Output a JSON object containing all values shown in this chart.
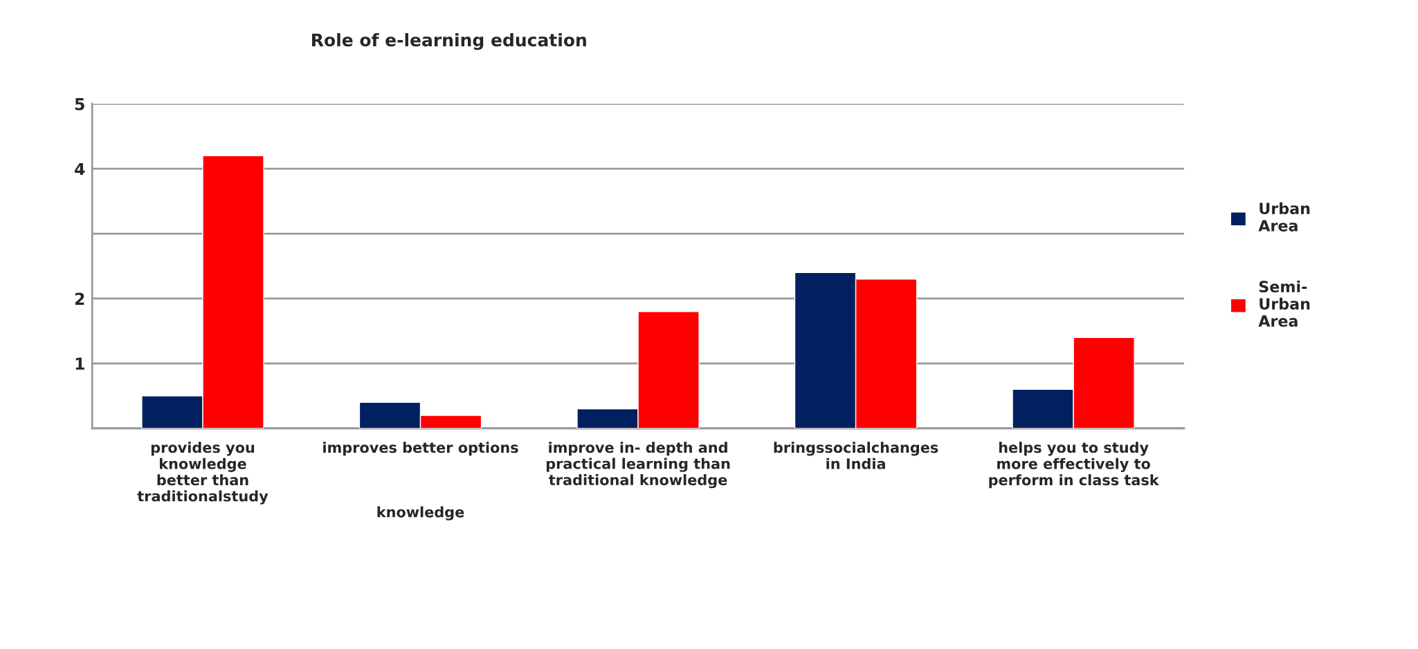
{
  "chart_data": {
    "type": "bar",
    "title": "Role of e-learning education",
    "categories": [
      "provides you\nknowledge\nbetter than\ntraditionalstudy",
      "improves better options\n\n\n\nknowledge",
      "improve in- depth and\npractical learning than\ntraditional knowledge",
      "bringssocialchanges\nin India",
      "helps you to study\nmore effectively to\nperform in class task"
    ],
    "series": [
      {
        "name": "Urban\nArea",
        "color": "#002060",
        "values": [
          0.5,
          0.4,
          0.3,
          2.4,
          0.6
        ]
      },
      {
        "name": "Semi-\nUrban\nArea",
        "color": "#ff0000",
        "values": [
          4.2,
          0.2,
          1.8,
          2.3,
          1.4
        ]
      }
    ],
    "ylim": [
      0,
      5
    ],
    "yticks": [
      {
        "value": 0,
        "label": null
      },
      {
        "value": 1,
        "label": "1"
      },
      {
        "value": 2,
        "label": "2"
      },
      {
        "value": 3,
        "label": null
      },
      {
        "value": 4,
        "label": "4"
      },
      {
        "value": 5,
        "label": "5"
      }
    ],
    "grid": "y",
    "legend": "right"
  }
}
